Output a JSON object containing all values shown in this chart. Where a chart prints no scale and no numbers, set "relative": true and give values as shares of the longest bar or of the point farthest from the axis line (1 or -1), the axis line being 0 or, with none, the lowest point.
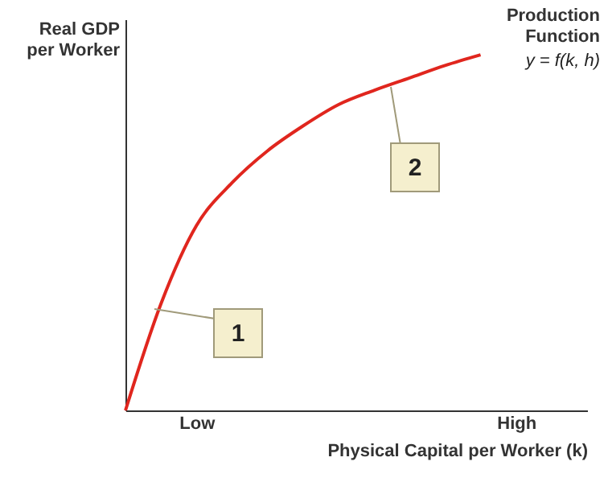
{
  "chart_data": {
    "type": "line",
    "relative": true,
    "xlabel": "Physical Capital per Worker (k)",
    "ylabel": "Real GDP\nper Worker",
    "categories": [
      null,
      null,
      "Low",
      null,
      null,
      null,
      null,
      null,
      null,
      null,
      null,
      "High",
      null,
      null
    ],
    "series": [
      {
        "name": "Production\nFunction",
        "color": "#e0261e",
        "values": [
          0,
          0.3,
          0.52,
          0.64,
          0.73,
          0.8,
          0.86,
          0.9,
          0.935,
          0.97,
          1.0,
          null,
          null,
          null
        ]
      }
    ],
    "annotations": [
      "1",
      "2",
      "y = f(k, h)"
    ],
    "grid": false
  }
}
